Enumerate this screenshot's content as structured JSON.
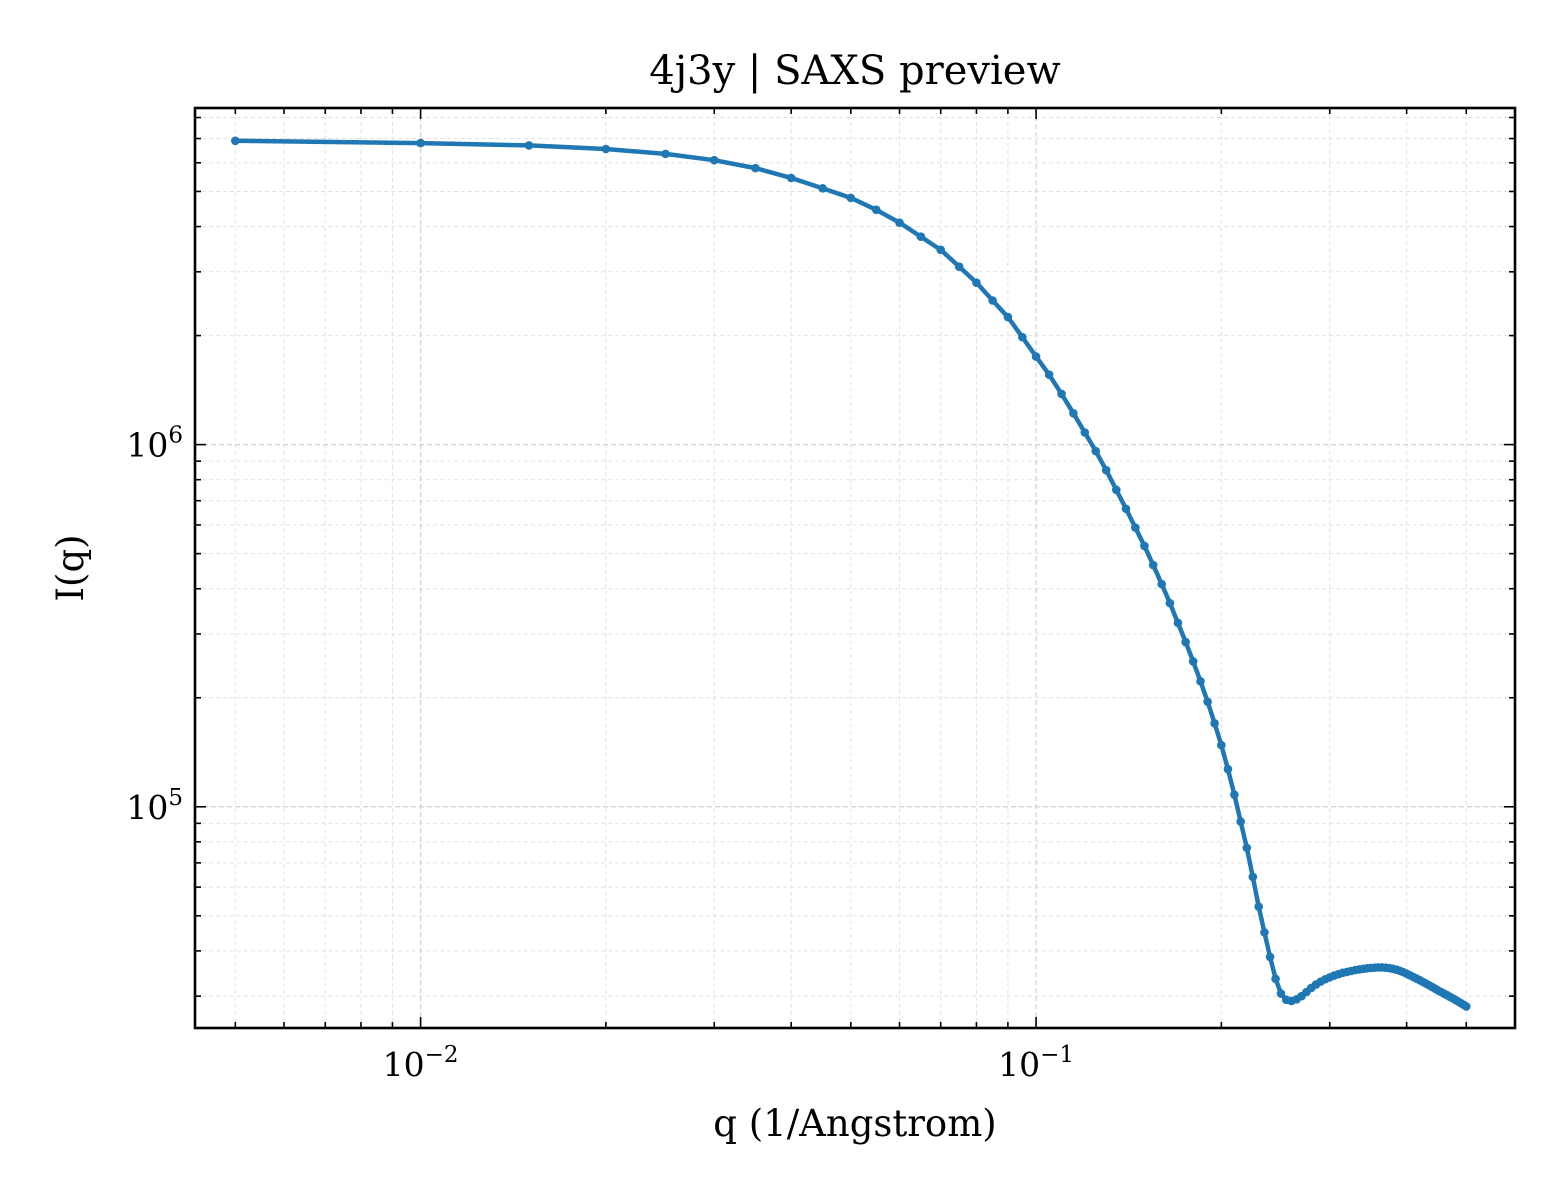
{
  "chart_data": {
    "type": "line",
    "title": "4j3y | SAXS preview",
    "xlabel": "q (1/Angstrom)",
    "ylabel": "I(q)",
    "xscale": "log",
    "yscale": "log",
    "xlim": [
      0.0043,
      0.6
    ],
    "ylim": [
      24500,
      8500000
    ],
    "grid": true,
    "legend": "none",
    "x_ticks": [
      {
        "value": 0.01,
        "base": "10",
        "exp": "−2"
      },
      {
        "value": 0.1,
        "base": "10",
        "exp": "−1"
      }
    ],
    "y_ticks": [
      {
        "value": 100000,
        "base": "10",
        "exp": "5"
      },
      {
        "value": 1000000,
        "base": "10",
        "exp": "6"
      }
    ],
    "series": [
      {
        "color": "#1f77b4",
        "marker": "circle",
        "x": [
          0.005,
          0.01,
          0.015,
          0.02,
          0.025,
          0.03,
          0.035,
          0.04,
          0.045,
          0.05,
          0.055,
          0.06,
          0.065,
          0.07,
          0.075,
          0.08,
          0.085,
          0.09,
          0.095,
          0.1,
          0.105,
          0.11,
          0.115,
          0.12,
          0.125,
          0.13,
          0.135,
          0.14,
          0.145,
          0.15,
          0.155,
          0.16,
          0.165,
          0.17,
          0.175,
          0.18,
          0.185,
          0.19,
          0.195,
          0.2,
          0.205,
          0.21,
          0.215,
          0.22,
          0.225,
          0.23,
          0.235,
          0.24,
          0.245,
          0.25,
          0.255,
          0.26,
          0.265,
          0.27,
          0.275,
          0.28,
          0.285,
          0.29,
          0.295,
          0.3,
          0.305,
          0.31,
          0.315,
          0.32,
          0.325,
          0.33,
          0.335,
          0.34,
          0.345,
          0.35,
          0.355,
          0.36,
          0.365,
          0.37,
          0.375,
          0.38,
          0.385,
          0.39,
          0.395,
          0.4,
          0.405,
          0.41,
          0.415,
          0.42,
          0.425,
          0.43,
          0.435,
          0.44,
          0.445,
          0.45,
          0.455,
          0.46,
          0.465,
          0.47,
          0.475,
          0.48,
          0.485,
          0.49,
          0.495,
          0.5
        ],
        "y": [
          6900000,
          6800000,
          6700000,
          6550000,
          6350000,
          6100000,
          5800000,
          5450000,
          5100000,
          4800000,
          4450000,
          4100000,
          3750000,
          3450000,
          3100000,
          2800000,
          2500000,
          2250000,
          1980000,
          1750000,
          1560000,
          1380000,
          1220000,
          1080000,
          960000,
          850000,
          750000,
          665000,
          590000,
          525000,
          465000,
          412000,
          365000,
          322000,
          285000,
          252000,
          222000,
          195000,
          170000,
          148000,
          127000,
          108000,
          91000,
          77000,
          64000,
          53000,
          45000,
          38500,
          33500,
          30500,
          29300,
          29100,
          29400,
          30000,
          30800,
          31600,
          32300,
          32900,
          33400,
          33800,
          34200,
          34500,
          34800,
          35000,
          35200,
          35400,
          35550,
          35700,
          35800,
          35900,
          35950,
          36000,
          36000,
          35950,
          35850,
          35700,
          35500,
          35250,
          34950,
          34600,
          34250,
          33900,
          33550,
          33200,
          32850,
          32500,
          32150,
          31800,
          31450,
          31100,
          30800,
          30500,
          30200,
          29900,
          29600,
          29300,
          29000,
          28700,
          28400,
          28100
        ]
      }
    ]
  }
}
